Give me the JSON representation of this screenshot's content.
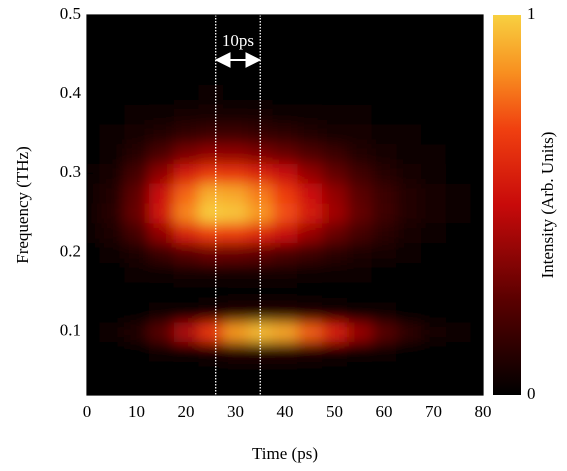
{
  "chart_data": {
    "type": "heatmap",
    "x_label": "Time (ps)",
    "y_label": "Frequency (THz)",
    "x": [
      0,
      5,
      10,
      15,
      20,
      25,
      30,
      35,
      40,
      45,
      50,
      55,
      60,
      65,
      70,
      75,
      80
    ],
    "y": [
      0.025,
      0.05,
      0.075,
      0.1,
      0.125,
      0.15,
      0.175,
      0.2,
      0.225,
      0.25,
      0.275,
      0.3,
      0.325,
      0.35,
      0.375,
      0.4,
      0.425,
      0.45,
      0.475,
      0.5
    ],
    "z": [
      [
        0,
        0,
        0,
        0,
        0,
        0,
        0,
        0,
        0,
        0,
        0,
        0,
        0,
        0,
        0,
        0,
        0
      ],
      [
        0,
        0,
        0,
        0,
        0,
        0,
        0,
        0,
        0,
        0,
        0,
        0,
        0,
        0,
        0,
        0,
        0
      ],
      [
        0,
        0,
        0.01,
        0.02,
        0.04,
        0.07,
        0.09,
        0.1,
        0.09,
        0.08,
        0.06,
        0.04,
        0.02,
        0.01,
        0.01,
        0,
        0
      ],
      [
        0.01,
        0.04,
        0.1,
        0.24,
        0.44,
        0.67,
        0.87,
        0.95,
        0.9,
        0.76,
        0.58,
        0.39,
        0.24,
        0.13,
        0.06,
        0.03,
        0.01
      ],
      [
        0,
        0,
        0.01,
        0.02,
        0.04,
        0.07,
        0.09,
        0.1,
        0.09,
        0.08,
        0.06,
        0.04,
        0.02,
        0.01,
        0.01,
        0,
        0
      ],
      [
        0,
        0,
        0,
        0.01,
        0.01,
        0.01,
        0.01,
        0.01,
        0.01,
        0.01,
        0,
        0,
        0,
        0,
        0,
        0,
        0
      ],
      [
        0,
        0.01,
        0.02,
        0.04,
        0.06,
        0.07,
        0.07,
        0.06,
        0.05,
        0.04,
        0.03,
        0.02,
        0.01,
        0.01,
        0,
        0,
        0
      ],
      [
        0.01,
        0.03,
        0.08,
        0.16,
        0.24,
        0.29,
        0.28,
        0.26,
        0.21,
        0.17,
        0.12,
        0.08,
        0.05,
        0.03,
        0.01,
        0.01,
        0
      ],
      [
        0.02,
        0.08,
        0.19,
        0.38,
        0.58,
        0.69,
        0.68,
        0.61,
        0.51,
        0.39,
        0.28,
        0.19,
        0.12,
        0.07,
        0.03,
        0.01,
        0.01
      ],
      [
        0.03,
        0.11,
        0.28,
        0.54,
        0.83,
        0.99,
        0.97,
        0.87,
        0.73,
        0.56,
        0.41,
        0.27,
        0.17,
        0.1,
        0.05,
        0.02,
        0.01
      ],
      [
        0.03,
        0.1,
        0.26,
        0.51,
        0.77,
        0.92,
        0.9,
        0.81,
        0.68,
        0.52,
        0.38,
        0.25,
        0.16,
        0.09,
        0.05,
        0.02,
        0.01
      ],
      [
        0.02,
        0.07,
        0.19,
        0.37,
        0.56,
        0.67,
        0.66,
        0.59,
        0.5,
        0.38,
        0.27,
        0.18,
        0.11,
        0.07,
        0.03,
        0.01,
        0.01
      ],
      [
        0.01,
        0.04,
        0.11,
        0.21,
        0.32,
        0.38,
        0.37,
        0.33,
        0.28,
        0.22,
        0.16,
        0.1,
        0.06,
        0.04,
        0.02,
        0.01,
        0
      ],
      [
        0.01,
        0.02,
        0.05,
        0.09,
        0.14,
        0.17,
        0.17,
        0.15,
        0.13,
        0.1,
        0.07,
        0.05,
        0.03,
        0.02,
        0.01,
        0,
        0
      ],
      [
        0,
        0.01,
        0.02,
        0.03,
        0.05,
        0.06,
        0.06,
        0.05,
        0.04,
        0.03,
        0.02,
        0.02,
        0.01,
        0.01,
        0,
        0,
        0
      ],
      [
        0,
        0,
        0,
        0.01,
        0.01,
        0.02,
        0.01,
        0.01,
        0.01,
        0.01,
        0.01,
        0,
        0,
        0,
        0,
        0,
        0
      ],
      [
        0,
        0,
        0,
        0,
        0,
        0,
        0,
        0,
        0,
        0,
        0,
        0,
        0,
        0,
        0,
        0,
        0
      ],
      [
        0,
        0,
        0,
        0,
        0,
        0,
        0,
        0,
        0,
        0,
        0,
        0,
        0,
        0,
        0,
        0,
        0
      ],
      [
        0,
        0,
        0,
        0,
        0,
        0,
        0,
        0,
        0,
        0,
        0,
        0,
        0,
        0,
        0,
        0,
        0
      ],
      [
        0,
        0,
        0,
        0,
        0,
        0,
        0,
        0,
        0,
        0,
        0,
        0,
        0,
        0,
        0,
        0,
        0
      ]
    ],
    "xlim": [
      0,
      80
    ],
    "xticks": [
      0,
      10,
      20,
      30,
      40,
      50,
      60,
      70,
      80
    ],
    "ylim": [
      0.02,
      0.5
    ],
    "yticks": [
      0.1,
      0.2,
      0.3,
      0.4,
      0.5
    ],
    "colorbar": {
      "label": "Intensity (Arb. Units)",
      "lim": [
        0,
        1
      ],
      "ticks": [
        0,
        1
      ]
    },
    "markers": {
      "x": [
        26,
        35
      ],
      "text": "10ps"
    }
  }
}
